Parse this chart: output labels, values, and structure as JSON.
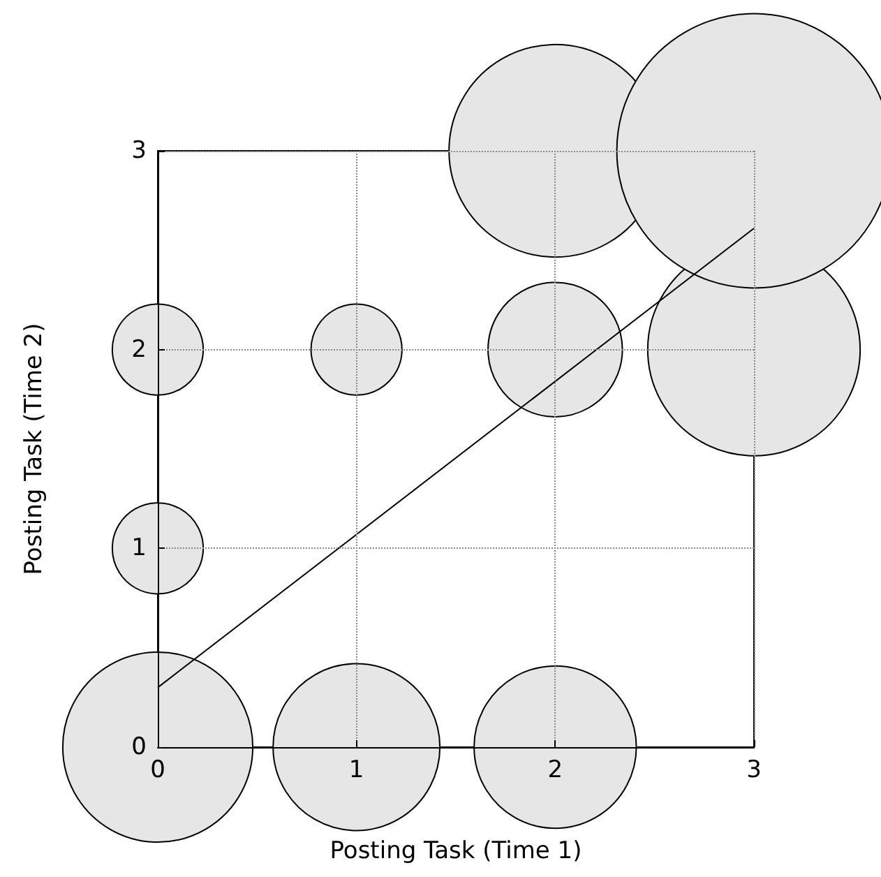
{
  "chart_data": {
    "type": "bubble",
    "xlabel": "Posting Task (Time 1)",
    "ylabel": "Posting Task (Time 2)",
    "series": [
      {
        "color": "#e6e6e6",
        "x": [
          0,
          1,
          2,
          0,
          0,
          1,
          2,
          3,
          2,
          3
        ],
        "values": [
          0,
          0,
          0,
          1,
          2,
          2,
          2,
          2,
          3,
          3
        ],
        "sizes": [
          0.48,
          0.37,
          0.35,
          0.11,
          0.11,
          0.11,
          0.24,
          0.6,
          0.6,
          1
        ]
      },
      {
        "type": "line",
        "color": "#000000",
        "x": [
          0,
          3
        ],
        "values": [
          0.3,
          2.61
        ]
      }
    ],
    "xlim": [
      0,
      3
    ],
    "ylim": [
      0,
      3
    ],
    "xticks": [
      0,
      1,
      2,
      3
    ],
    "yticks": [
      0,
      1,
      2,
      3
    ],
    "grid": true
  }
}
